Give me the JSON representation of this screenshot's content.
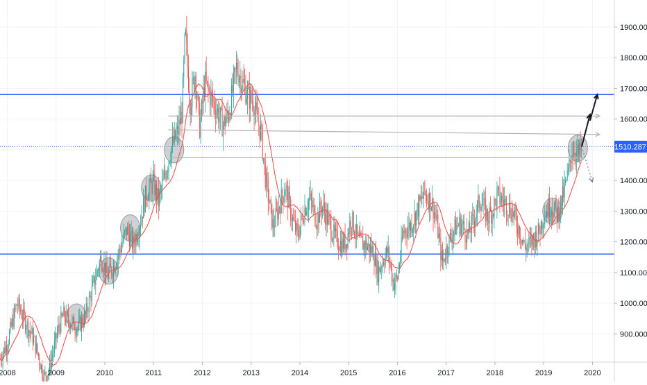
{
  "chart_data": {
    "type": "candlestick",
    "instrument_axis": "price",
    "xlim": [
      2007.85,
      2020.45
    ],
    "ylim": [
      808,
      1988
    ],
    "x_ticks": [
      "2008",
      "2009",
      "2010",
      "2011",
      "2012",
      "2013",
      "2014",
      "2015",
      "2016",
      "2017",
      "2018",
      "2019",
      "2020"
    ],
    "y_ticks": [
      "900.000",
      "1000.000",
      "1100.000",
      "1200.000",
      "1300.000",
      "1400.000",
      "1500.000",
      "1600.000",
      "1700.000",
      "1800.000",
      "1900.000"
    ],
    "last_price_label": "1510.287",
    "last_price": 1510.287,
    "price_path": [
      [
        2007.85,
        820
      ],
      [
        2008.0,
        870
      ],
      [
        2008.2,
        1000
      ],
      [
        2008.4,
        930
      ],
      [
        2008.55,
        880
      ],
      [
        2008.75,
        760
      ],
      [
        2008.85,
        780
      ],
      [
        2009.05,
        920
      ],
      [
        2009.15,
        960
      ],
      [
        2009.35,
        930
      ],
      [
        2009.45,
        920
      ],
      [
        2009.6,
        960
      ],
      [
        2009.75,
        1050
      ],
      [
        2009.92,
        1150
      ],
      [
        2010.05,
        1090
      ],
      [
        2010.15,
        1110
      ],
      [
        2010.3,
        1170
      ],
      [
        2010.45,
        1240
      ],
      [
        2010.58,
        1190
      ],
      [
        2010.7,
        1250
      ],
      [
        2010.85,
        1360
      ],
      [
        2011.0,
        1390
      ],
      [
        2011.1,
        1330
      ],
      [
        2011.25,
        1430
      ],
      [
        2011.35,
        1500
      ],
      [
        2011.5,
        1560
      ],
      [
        2011.58,
        1620
      ],
      [
        2011.65,
        1880
      ],
      [
        2011.75,
        1650
      ],
      [
        2011.85,
        1750
      ],
      [
        2011.95,
        1570
      ],
      [
        2012.05,
        1720
      ],
      [
        2012.15,
        1680
      ],
      [
        2012.3,
        1630
      ],
      [
        2012.42,
        1580
      ],
      [
        2012.55,
        1620
      ],
      [
        2012.7,
        1770
      ],
      [
        2012.82,
        1720
      ],
      [
        2012.95,
        1670
      ],
      [
        2013.05,
        1660
      ],
      [
        2013.12,
        1600
      ],
      [
        2013.2,
        1560
      ],
      [
        2013.3,
        1400
      ],
      [
        2013.45,
        1250
      ],
      [
        2013.6,
        1330
      ],
      [
        2013.7,
        1380
      ],
      [
        2013.85,
        1270
      ],
      [
        2013.95,
        1220
      ],
      [
        2014.1,
        1310
      ],
      [
        2014.2,
        1340
      ],
      [
        2014.35,
        1270
      ],
      [
        2014.45,
        1320
      ],
      [
        2014.55,
        1280
      ],
      [
        2014.7,
        1220
      ],
      [
        2014.85,
        1190
      ],
      [
        2014.95,
        1200
      ],
      [
        2015.05,
        1280
      ],
      [
        2015.2,
        1200
      ],
      [
        2015.35,
        1190
      ],
      [
        2015.5,
        1170
      ],
      [
        2015.6,
        1100
      ],
      [
        2015.7,
        1140
      ],
      [
        2015.8,
        1170
      ],
      [
        2015.92,
        1065
      ],
      [
        2016.0,
        1080
      ],
      [
        2016.12,
        1230
      ],
      [
        2016.3,
        1260
      ],
      [
        2016.45,
        1320
      ],
      [
        2016.55,
        1360
      ],
      [
        2016.7,
        1330
      ],
      [
        2016.8,
        1270
      ],
      [
        2016.92,
        1130
      ],
      [
        2017.05,
        1200
      ],
      [
        2017.2,
        1250
      ],
      [
        2017.3,
        1260
      ],
      [
        2017.45,
        1220
      ],
      [
        2017.6,
        1290
      ],
      [
        2017.7,
        1340
      ],
      [
        2017.85,
        1280
      ],
      [
        2017.95,
        1300
      ],
      [
        2018.05,
        1350
      ],
      [
        2018.2,
        1330
      ],
      [
        2018.35,
        1300
      ],
      [
        2018.5,
        1240
      ],
      [
        2018.62,
        1180
      ],
      [
        2018.75,
        1200
      ],
      [
        2018.9,
        1230
      ],
      [
        2019.0,
        1290
      ],
      [
        2019.15,
        1320
      ],
      [
        2019.28,
        1290
      ],
      [
        2019.4,
        1350
      ],
      [
        2019.5,
        1420
      ],
      [
        2019.58,
        1500
      ],
      [
        2019.65,
        1500
      ],
      [
        2019.72,
        1480
      ],
      [
        2019.78,
        1510
      ]
    ],
    "horizontal_levels": [
      {
        "price": 1680,
        "color": "#2962ff"
      },
      {
        "price": 1160,
        "color": "#2962ff"
      }
    ],
    "trend_arrows": [
      {
        "from": [
          2011.3,
          1610
        ],
        "to": [
          2020.15,
          1610
        ],
        "color": "#b2b2b2"
      },
      {
        "from": [
          2011.3,
          1565
        ],
        "to": [
          2020.15,
          1550
        ],
        "color": "#b2b2b2"
      },
      {
        "from": [
          2011.35,
          1474
        ],
        "to": [
          2019.7,
          1474
        ],
        "color": "#b2b2b2"
      },
      {
        "from": [
          2019.78,
          1510
        ],
        "to": [
          2019.95,
          1615
        ],
        "color": "#131722"
      },
      {
        "from": [
          2019.95,
          1595
        ],
        "to": [
          2020.1,
          1680
        ],
        "color": "#131722"
      },
      {
        "from": [
          2019.8,
          1500
        ],
        "to": [
          2020.0,
          1395
        ],
        "color": "#787b86",
        "dashed": true
      }
    ],
    "highlight_circles": [
      {
        "x": 2009.42,
        "y": 955
      },
      {
        "x": 2010.08,
        "y": 1105
      },
      {
        "x": 2010.52,
        "y": 1245
      },
      {
        "x": 2010.95,
        "y": 1375
      },
      {
        "x": 2011.42,
        "y": 1500
      },
      {
        "x": 2019.18,
        "y": 1300
      },
      {
        "x": 2019.7,
        "y": 1505
      }
    ],
    "colors": {
      "up": "#26a69a",
      "down": "#ef5350",
      "moving_average": "#ef5350",
      "grid": "#f0f3fa",
      "axis_text": "#131722",
      "price_tag_bg": "#2962ff",
      "price_tag_text": "#ffffff",
      "last_price_line": "#2962ff",
      "circle_fill": "rgba(120,123,134,0.35)",
      "circle_stroke": "#9598a1"
    }
  }
}
